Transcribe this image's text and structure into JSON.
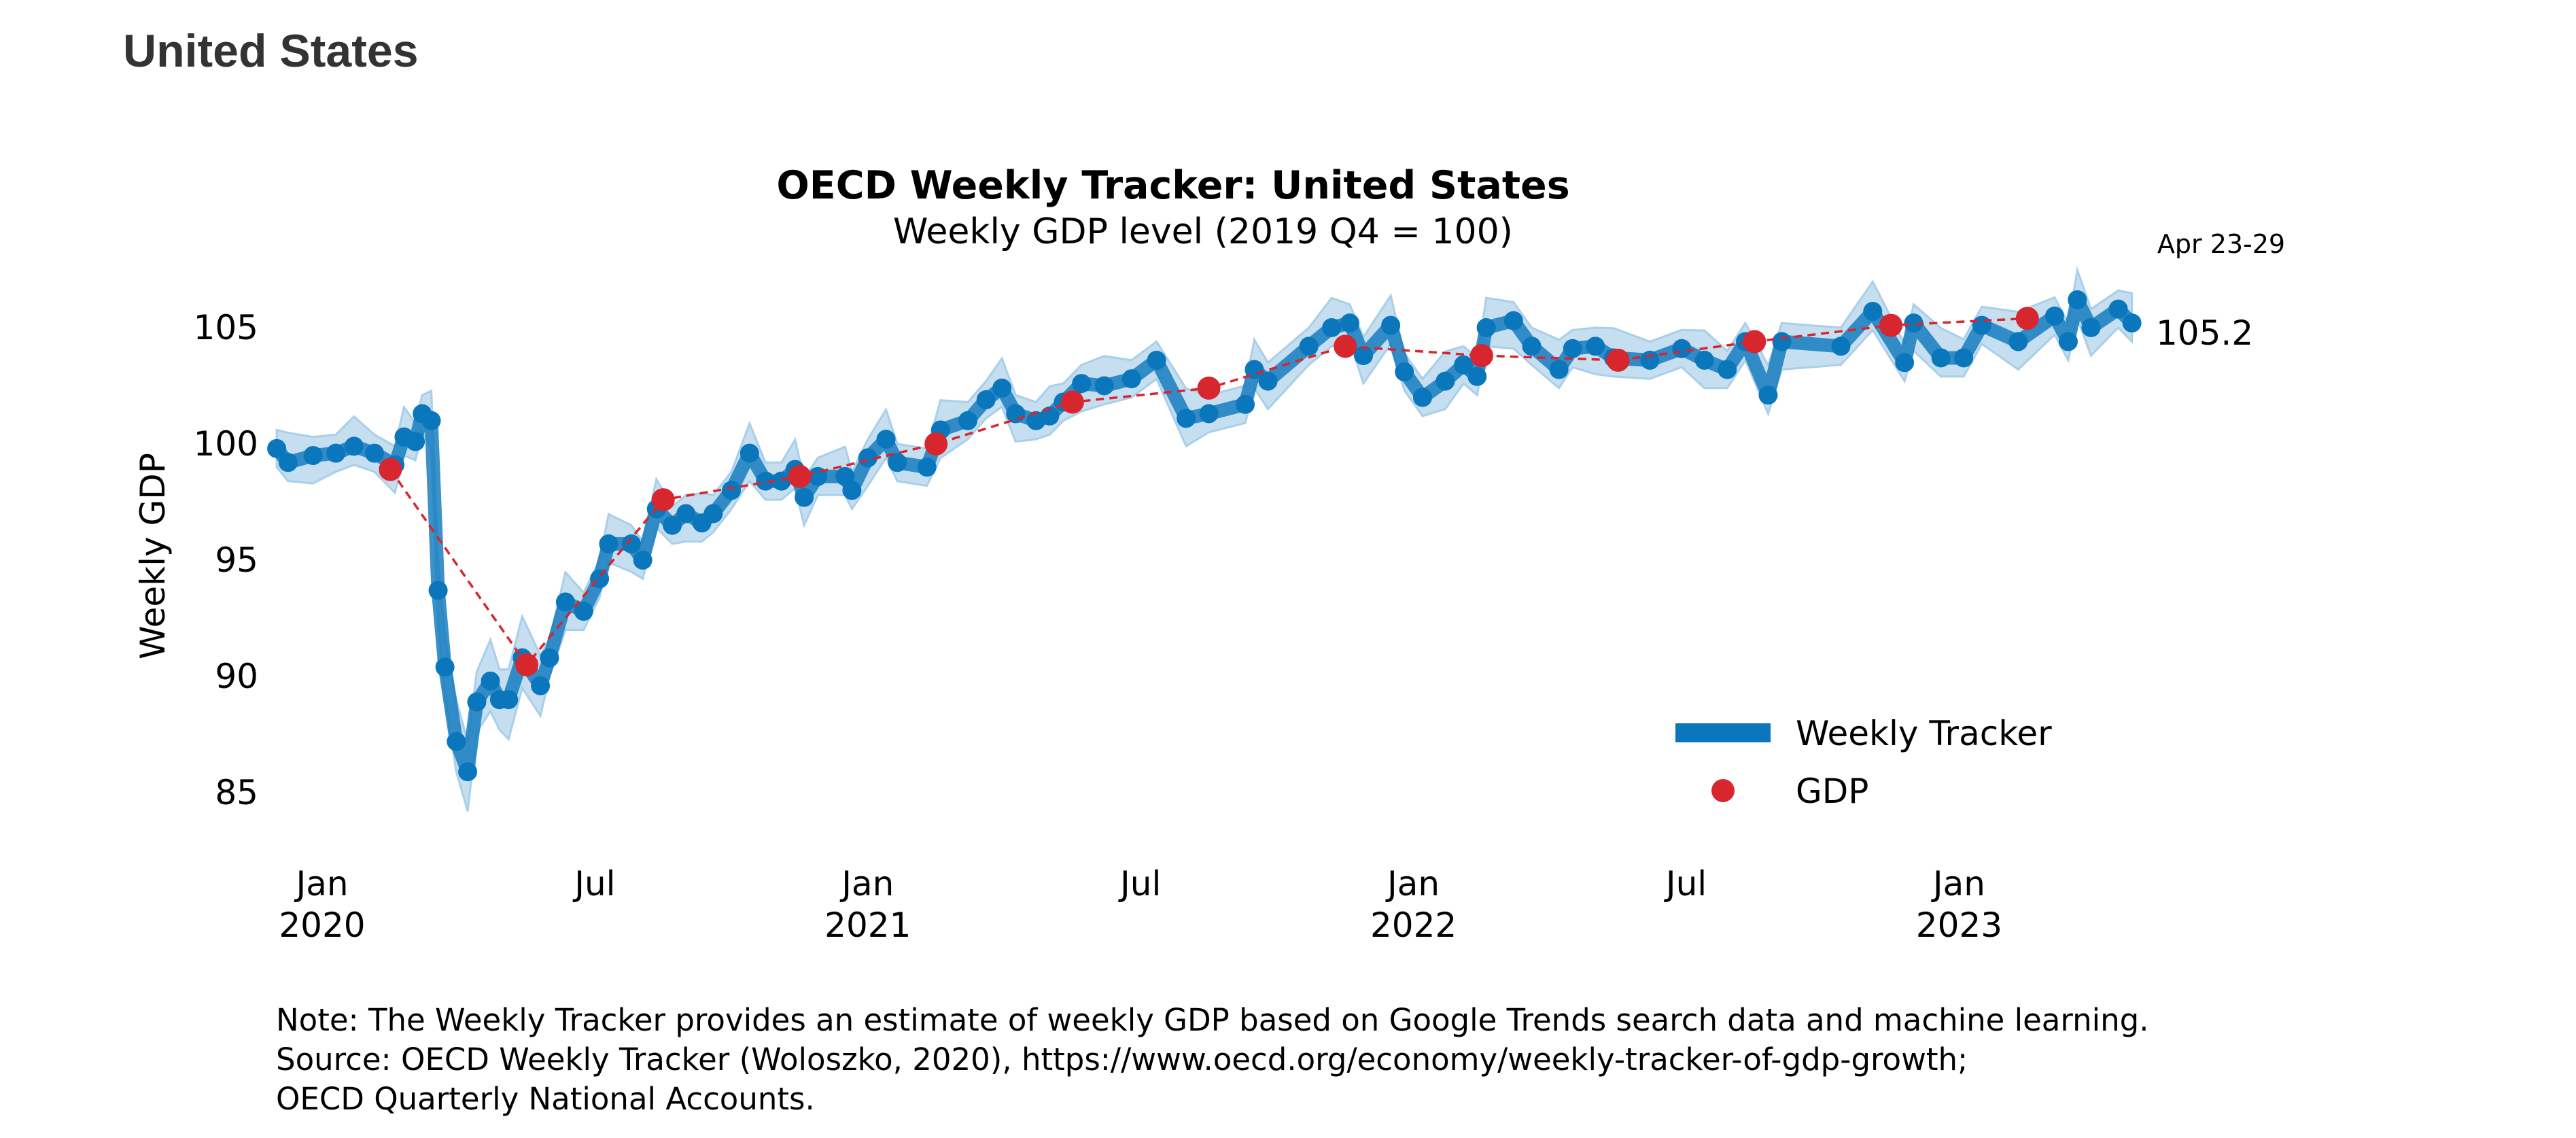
{
  "header": {
    "country": "United States"
  },
  "notes": [
    "Note: The Weekly Tracker provides an estimate of weekly GDP based on Google Trends search data and machine learning.",
    "Source: OECD Weekly Tracker (Woloszko, 2020), https://www.oecd.org/economy/weekly-tracker-of-gdp-growth;",
    "OECD Quarterly National Accounts."
  ],
  "chart_data": {
    "type": "line",
    "title": "OECD Weekly Tracker: United States",
    "subtitle": "Weekly GDP level (2019 Q4 = 100)",
    "ylabel": "Weekly GDP",
    "xlabel": "",
    "x_unit": "months since Jan 2020",
    "ylim": [
      83,
      107
    ],
    "yticks": [
      85,
      90,
      95,
      100,
      105
    ],
    "xticks": [
      {
        "month": 0,
        "line1": "Jan",
        "line2": "2020"
      },
      {
        "month": 6,
        "line1": "Jul",
        "line2": ""
      },
      {
        "month": 12,
        "line1": "Jan",
        "line2": "2021"
      },
      {
        "month": 18,
        "line1": "Jul",
        "line2": ""
      },
      {
        "month": 24,
        "line1": "Jan",
        "line2": "2022"
      },
      {
        "month": 30,
        "line1": "Jul",
        "line2": ""
      },
      {
        "month": 36,
        "line1": "Jan",
        "line2": "2023"
      }
    ],
    "latest_period": "Apr 23-29",
    "latest_value": "105.2",
    "legend": {
      "position": "bottom-right",
      "entries": [
        "Weekly Tracker",
        "GDP"
      ]
    },
    "colors": {
      "tracker": "#0a76bb",
      "band": "#c5def0",
      "gdp": "#d7262e"
    },
    "band_halfwidth": 0.8,
    "series": [
      {
        "name": "Weekly Tracker",
        "points": [
          [
            -1.0,
            99.8
          ],
          [
            -0.75,
            99.2
          ],
          [
            -0.2,
            99.5
          ],
          [
            0.3,
            99.6
          ],
          [
            0.7,
            99.9
          ],
          [
            1.15,
            99.6
          ],
          [
            1.6,
            99.1
          ],
          [
            1.8,
            100.3
          ],
          [
            2.05,
            100.1
          ],
          [
            2.2,
            101.3
          ],
          [
            2.4,
            101.0
          ],
          [
            2.55,
            93.7
          ],
          [
            2.7,
            90.4
          ],
          [
            2.95,
            87.2
          ],
          [
            3.2,
            85.9
          ],
          [
            3.4,
            88.9
          ],
          [
            3.7,
            89.8
          ],
          [
            3.9,
            89.0
          ],
          [
            4.1,
            89.0
          ],
          [
            4.4,
            90.8
          ],
          [
            4.8,
            89.6
          ],
          [
            5.0,
            90.8
          ],
          [
            5.35,
            93.2
          ],
          [
            5.75,
            92.8
          ],
          [
            6.1,
            94.2
          ],
          [
            6.3,
            95.7
          ],
          [
            6.8,
            95.7
          ],
          [
            7.05,
            95.0
          ],
          [
            7.35,
            97.2
          ],
          [
            7.7,
            96.5
          ],
          [
            8.0,
            97.0
          ],
          [
            8.35,
            96.6
          ],
          [
            8.6,
            97.0
          ],
          [
            9.0,
            98.0
          ],
          [
            9.4,
            99.6
          ],
          [
            9.75,
            98.4
          ],
          [
            10.1,
            98.4
          ],
          [
            10.4,
            98.9
          ],
          [
            10.6,
            97.7
          ],
          [
            10.9,
            98.6
          ],
          [
            11.5,
            98.6
          ],
          [
            11.65,
            98.0
          ],
          [
            12.0,
            99.4
          ],
          [
            12.4,
            100.2
          ],
          [
            12.65,
            99.2
          ],
          [
            13.3,
            99.0
          ],
          [
            13.6,
            100.6
          ],
          [
            14.2,
            101.0
          ],
          [
            14.6,
            101.9
          ],
          [
            14.95,
            102.4
          ],
          [
            15.25,
            101.3
          ],
          [
            15.7,
            101.0
          ],
          [
            16.0,
            101.2
          ],
          [
            16.3,
            101.8
          ],
          [
            16.7,
            102.6
          ],
          [
            17.2,
            102.5
          ],
          [
            17.8,
            102.8
          ],
          [
            18.35,
            103.6
          ],
          [
            19.0,
            101.1
          ],
          [
            19.5,
            101.3
          ],
          [
            20.3,
            101.7
          ],
          [
            20.5,
            103.2
          ],
          [
            20.8,
            102.7
          ],
          [
            21.7,
            104.2
          ],
          [
            22.2,
            105.0
          ],
          [
            22.6,
            105.2
          ],
          [
            22.9,
            103.8
          ],
          [
            23.5,
            105.1
          ],
          [
            23.8,
            103.1
          ],
          [
            24.2,
            102.0
          ],
          [
            24.7,
            102.7
          ],
          [
            25.1,
            103.4
          ],
          [
            25.4,
            102.9
          ],
          [
            25.6,
            105.0
          ],
          [
            26.2,
            105.3
          ],
          [
            26.6,
            104.2
          ],
          [
            27.2,
            103.2
          ],
          [
            27.5,
            104.1
          ],
          [
            28.0,
            104.2
          ],
          [
            28.4,
            103.7
          ],
          [
            29.2,
            103.6
          ],
          [
            29.9,
            104.1
          ],
          [
            30.4,
            103.6
          ],
          [
            30.9,
            103.2
          ],
          [
            31.3,
            104.4
          ],
          [
            31.8,
            102.1
          ],
          [
            32.1,
            104.4
          ],
          [
            33.4,
            104.2
          ],
          [
            34.1,
            105.7
          ],
          [
            34.8,
            103.5
          ],
          [
            35.0,
            105.2
          ],
          [
            35.6,
            103.7
          ],
          [
            36.1,
            103.7
          ],
          [
            36.5,
            105.1
          ],
          [
            37.3,
            104.4
          ],
          [
            38.1,
            105.5
          ],
          [
            38.4,
            104.4
          ],
          [
            38.6,
            106.2
          ],
          [
            38.9,
            105.0
          ],
          [
            39.5,
            105.8
          ],
          [
            39.8,
            105.2
          ]
        ]
      },
      {
        "name": "GDP",
        "points": [
          [
            1.5,
            98.9
          ],
          [
            4.5,
            90.5
          ],
          [
            7.5,
            97.6
          ],
          [
            10.5,
            98.6
          ],
          [
            13.5,
            100.0
          ],
          [
            16.5,
            101.8
          ],
          [
            19.5,
            102.4
          ],
          [
            22.5,
            104.2
          ],
          [
            25.5,
            103.8
          ],
          [
            28.5,
            103.6
          ],
          [
            31.5,
            104.4
          ],
          [
            34.5,
            105.1
          ],
          [
            37.5,
            105.4
          ]
        ]
      }
    ]
  }
}
